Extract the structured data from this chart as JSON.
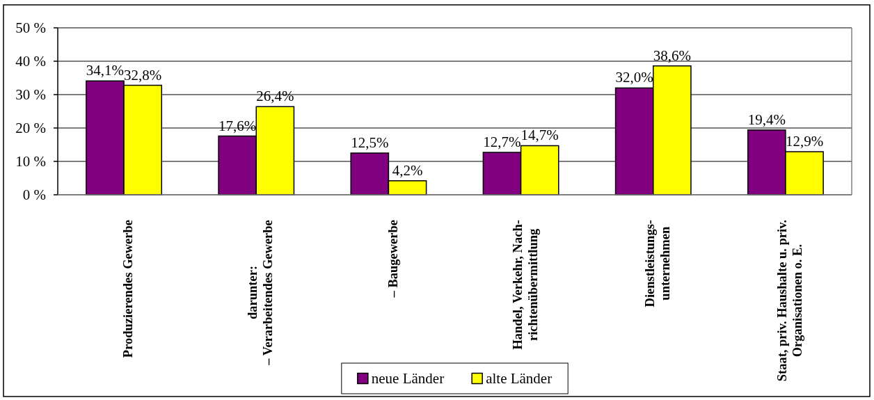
{
  "chart_data": {
    "type": "bar",
    "categories": [
      "Produzierendes Gewerbe",
      "darunter:\n– Verarbeitendes Gewerbe",
      "– Baugewerbe",
      "Handel, Verkehr, Nach-\nrichtenübermittlung",
      "Dienstleistungs-\nunternehmen",
      "Staat, priv. Haushalte u. priv.\nOrganisationen o. E."
    ],
    "series": [
      {
        "name": "neue Länder",
        "color": "#800080",
        "values": [
          34.1,
          17.6,
          12.5,
          12.7,
          32.0,
          19.4
        ],
        "value_labels": [
          "34,1%",
          "17,6%",
          "12,5%",
          "12,7%",
          "32,0%",
          "19,4%"
        ]
      },
      {
        "name": "alte Länder",
        "color": "#ffff00",
        "values": [
          32.8,
          26.4,
          4.2,
          14.7,
          38.6,
          12.9
        ],
        "value_labels": [
          "32,8%",
          "26,4%",
          "4,2%",
          "14,7%",
          "38,6%",
          "12,9%"
        ]
      }
    ],
    "ylim": [
      0,
      50
    ],
    "yticks": [
      {
        "value": 0,
        "label": "0 %"
      },
      {
        "value": 10,
        "label": "10 %"
      },
      {
        "value": 20,
        "label": "20 %"
      },
      {
        "value": 30,
        "label": "30 %"
      },
      {
        "value": 40,
        "label": "40 %"
      },
      {
        "value": 50,
        "label": "50 %"
      }
    ],
    "grid": "y",
    "legend": "bottom"
  }
}
